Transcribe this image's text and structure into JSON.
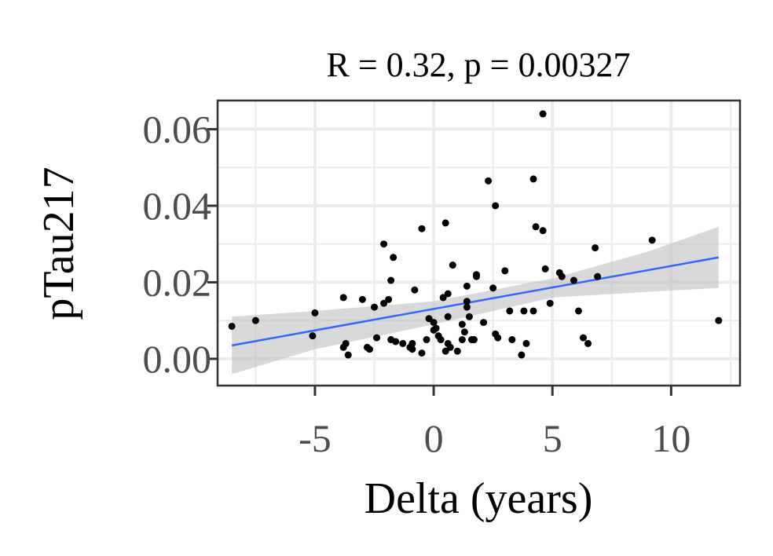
{
  "chart_data": {
    "type": "scatter",
    "title": "R = 0.32, p = 0.00327",
    "xlabel": "Delta (years)",
    "ylabel": "pTau217",
    "xlim": [
      -9.1,
      12.9
    ],
    "ylim": [
      -0.007,
      0.0675
    ],
    "x_ticks": [
      -5,
      0,
      5,
      10
    ],
    "x_tick_labels": [
      "-5",
      "0",
      "5",
      "10"
    ],
    "y_ticks": [
      0.0,
      0.02,
      0.04,
      0.06
    ],
    "y_tick_labels": [
      "0.00",
      "0.02",
      "0.04",
      "0.06"
    ],
    "grid": true,
    "point_color": "#000000",
    "fit_color": "#3366ff",
    "band_color": "#bfbfbf",
    "points": [
      [
        -8.5,
        0.0085
      ],
      [
        -7.5,
        0.01
      ],
      [
        -5.0,
        0.012
      ],
      [
        -5.1,
        0.006
      ],
      [
        -3.8,
        0.016
      ],
      [
        -3.7,
        0.004
      ],
      [
        -3.6,
        0.001
      ],
      [
        -3.8,
        0.003
      ],
      [
        -3.0,
        0.0155
      ],
      [
        -2.5,
        0.0135
      ],
      [
        -2.8,
        0.003
      ],
      [
        -2.7,
        0.0025
      ],
      [
        -2.4,
        0.0055
      ],
      [
        -2.1,
        0.03
      ],
      [
        -2.1,
        0.0145
      ],
      [
        -1.9,
        0.0155
      ],
      [
        -1.8,
        0.0205
      ],
      [
        -1.7,
        0.0265
      ],
      [
        -1.8,
        0.005
      ],
      [
        -1.6,
        0.0045
      ],
      [
        -1.3,
        0.004
      ],
      [
        -1.0,
        0.003
      ],
      [
        -0.9,
        0.0025
      ],
      [
        -0.9,
        0.004
      ],
      [
        -0.8,
        0.018
      ],
      [
        -0.5,
        0.034
      ],
      [
        -0.5,
        0.0015
      ],
      [
        -0.3,
        0.005
      ],
      [
        -0.2,
        0.0105
      ],
      [
        0.0,
        0.0095
      ],
      [
        0.0,
        0.0075
      ],
      [
        0.1,
        0.008
      ],
      [
        0.2,
        0.006
      ],
      [
        0.3,
        0.005
      ],
      [
        0.4,
        0.016
      ],
      [
        0.5,
        0.002
      ],
      [
        0.5,
        0.0355
      ],
      [
        0.6,
        0.017
      ],
      [
        0.6,
        0.011
      ],
      [
        0.6,
        0.004
      ],
      [
        0.7,
        0.003
      ],
      [
        0.8,
        0.0245
      ],
      [
        1.0,
        0.002
      ],
      [
        1.2,
        0.005
      ],
      [
        1.2,
        0.009
      ],
      [
        1.3,
        0.007
      ],
      [
        1.4,
        0.019
      ],
      [
        1.4,
        0.015
      ],
      [
        1.4,
        0.0135
      ],
      [
        1.5,
        0.011
      ],
      [
        1.6,
        0.005
      ],
      [
        1.7,
        0.005
      ],
      [
        1.8,
        0.0215
      ],
      [
        1.8,
        0.022
      ],
      [
        2.1,
        0.0095
      ],
      [
        2.3,
        0.0465
      ],
      [
        2.5,
        0.0185
      ],
      [
        2.6,
        0.04
      ],
      [
        2.6,
        0.0065
      ],
      [
        2.7,
        0.0055
      ],
      [
        3.0,
        0.023
      ],
      [
        3.2,
        0.0125
      ],
      [
        3.3,
        0.005
      ],
      [
        3.7,
        0.001
      ],
      [
        3.8,
        0.0125
      ],
      [
        3.9,
        0.004
      ],
      [
        4.2,
        0.0125
      ],
      [
        4.2,
        0.047
      ],
      [
        4.3,
        0.0345
      ],
      [
        4.6,
        0.064
      ],
      [
        4.6,
        0.0335
      ],
      [
        4.7,
        0.0235
      ],
      [
        4.9,
        0.0145
      ],
      [
        5.3,
        0.0225
      ],
      [
        5.4,
        0.0215
      ],
      [
        5.9,
        0.0205
      ],
      [
        6.1,
        0.0125
      ],
      [
        6.3,
        0.0055
      ],
      [
        6.5,
        0.004
      ],
      [
        6.8,
        0.029
      ],
      [
        6.9,
        0.0215
      ],
      [
        9.2,
        0.031
      ],
      [
        12.0,
        0.01
      ]
    ],
    "fit_line": {
      "x": [
        -8.5,
        12.0
      ],
      "y": [
        0.0035,
        0.0265
      ]
    },
    "confidence_band": {
      "x": [
        -8.5,
        -5.0,
        0.0,
        5.0,
        9.0,
        12.0
      ],
      "lower": [
        -0.004,
        0.0025,
        0.009,
        0.016,
        0.0175,
        0.0185
      ],
      "upper": [
        0.011,
        0.0125,
        0.015,
        0.021,
        0.028,
        0.0345
      ]
    }
  }
}
